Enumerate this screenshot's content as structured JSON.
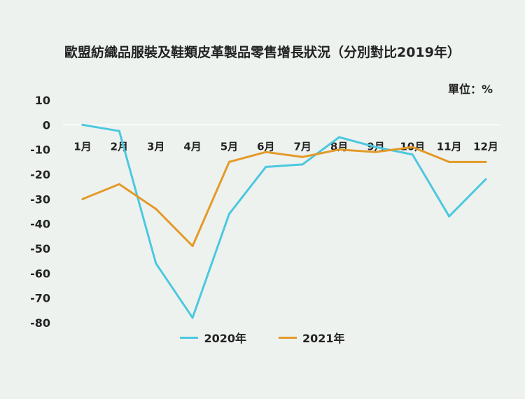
{
  "chart_data": {
    "type": "line",
    "title": "歐盟紡織品服裝及鞋類皮革製品零售增長狀況（分別對比2019年）",
    "unit_label": "單位：%",
    "categories": [
      "1月",
      "2月",
      "3月",
      "4月",
      "5月",
      "6月",
      "7月",
      "8月",
      "9月",
      "10月",
      "11月",
      "12月"
    ],
    "ylim": [
      -80,
      10
    ],
    "yticks": [
      10,
      0,
      -10,
      -20,
      -30,
      -40,
      -50,
      -60,
      -70,
      -80
    ],
    "series": [
      {
        "name": "2020年",
        "color": "#4cc8e0",
        "values": [
          0,
          -2.5,
          -56,
          -78,
          -36,
          -17,
          -16,
          -5,
          -9,
          -12,
          -37,
          -22
        ]
      },
      {
        "name": "2021年",
        "color": "#e39a28",
        "values": [
          -30,
          -24,
          -34,
          -49,
          -15,
          -11,
          -13,
          -10,
          -11,
          -9,
          -15,
          -15
        ]
      }
    ]
  }
}
